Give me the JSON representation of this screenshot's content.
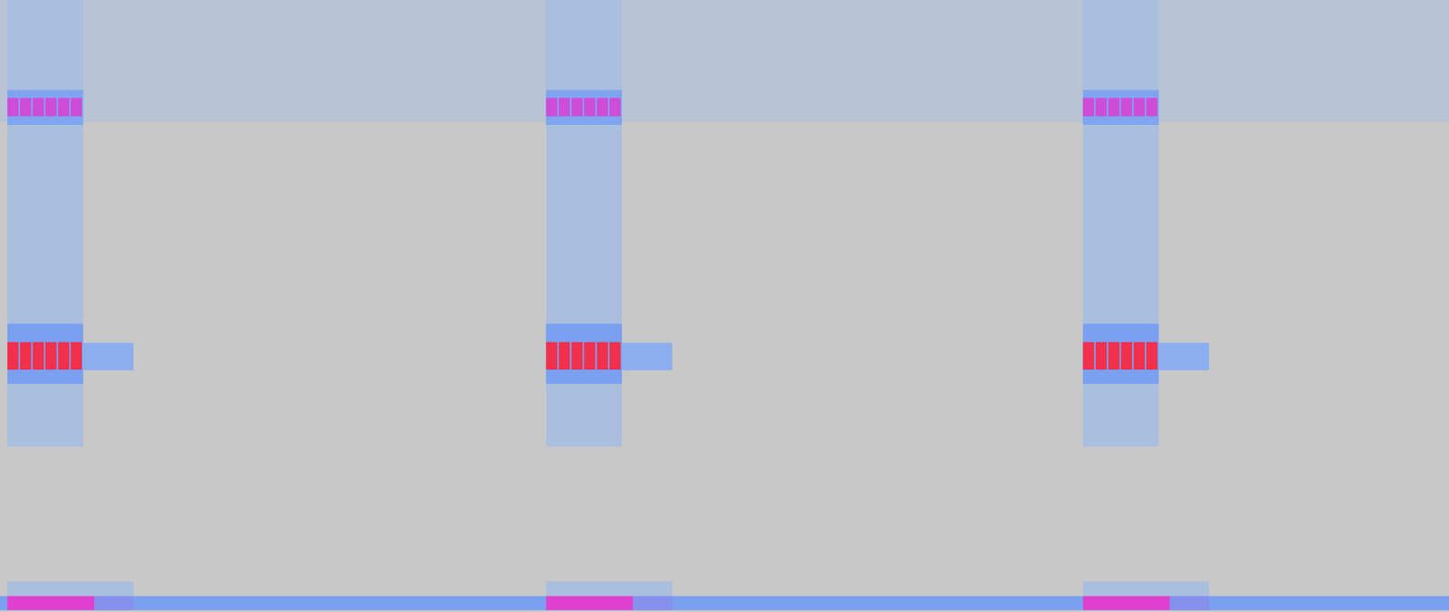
{
  "chart_data": {
    "type": "heatmap",
    "xlim": [
      0,
      100
    ],
    "ylim": [
      0,
      100
    ],
    "zlim": [
      0,
      100
    ],
    "tick_labels": false,
    "cells": [
      [
        0,
        100,
        80,
        100,
        8
      ],
      [
        0,
        100,
        0.3,
        2.6,
        50
      ],
      [
        0.51,
        5.74,
        27,
        100,
        15
      ],
      [
        0.51,
        5.74,
        37.3,
        47.1,
        50
      ],
      [
        0.51,
        1.28,
        39.6,
        44.1,
        100
      ],
      [
        1.38,
        2.15,
        39.6,
        44.1,
        100
      ],
      [
        2.26,
        3.03,
        39.6,
        44.1,
        100
      ],
      [
        3.13,
        3.9,
        39.6,
        44.1,
        100
      ],
      [
        4.01,
        4.78,
        39.6,
        44.1,
        100
      ],
      [
        4.88,
        5.65,
        39.6,
        44.1,
        100
      ],
      [
        5.74,
        9.21,
        39.5,
        44,
        35
      ],
      [
        0.51,
        5.74,
        79.6,
        85.3,
        45
      ],
      [
        0.51,
        1.28,
        81,
        84,
        80
      ],
      [
        1.38,
        2.15,
        81,
        84,
        80
      ],
      [
        2.26,
        3.03,
        81,
        84,
        80
      ],
      [
        3.13,
        3.9,
        81,
        84,
        80
      ],
      [
        4.01,
        4.78,
        81,
        84,
        80
      ],
      [
        4.88,
        5.65,
        81,
        84,
        80
      ],
      [
        0.51,
        9.21,
        2.6,
        5,
        15
      ],
      [
        0.51,
        6.51,
        0.3,
        2.6,
        85
      ],
      [
        6.51,
        9.21,
        0.3,
        2.6,
        55
      ],
      [
        37.69,
        42.92,
        27,
        100,
        15
      ],
      [
        37.69,
        42.92,
        37.3,
        47.1,
        50
      ],
      [
        37.69,
        38.46,
        39.6,
        44.1,
        100
      ],
      [
        38.56,
        39.33,
        39.6,
        44.1,
        100
      ],
      [
        39.44,
        40.21,
        39.6,
        44.1,
        100
      ],
      [
        40.31,
        41.08,
        39.6,
        44.1,
        100
      ],
      [
        41.19,
        41.96,
        39.6,
        44.1,
        100
      ],
      [
        42.06,
        42.83,
        39.6,
        44.1,
        100
      ],
      [
        42.92,
        46.39,
        39.5,
        44,
        35
      ],
      [
        37.69,
        42.92,
        79.6,
        85.3,
        45
      ],
      [
        37.69,
        38.46,
        81,
        84,
        80
      ],
      [
        38.56,
        39.33,
        81,
        84,
        80
      ],
      [
        39.44,
        40.21,
        81,
        84,
        80
      ],
      [
        40.31,
        41.08,
        81,
        84,
        80
      ],
      [
        41.19,
        41.96,
        81,
        84,
        80
      ],
      [
        42.06,
        42.83,
        81,
        84,
        80
      ],
      [
        37.69,
        46.39,
        2.6,
        5,
        15
      ],
      [
        37.69,
        43.69,
        0.3,
        2.6,
        85
      ],
      [
        43.69,
        46.39,
        0.3,
        2.6,
        55
      ],
      [
        74.74,
        79.97,
        27,
        100,
        15
      ],
      [
        74.74,
        79.97,
        37.3,
        47.1,
        50
      ],
      [
        74.74,
        75.51,
        39.6,
        44.1,
        100
      ],
      [
        75.61,
        76.38,
        39.6,
        44.1,
        100
      ],
      [
        76.49,
        77.26,
        39.6,
        44.1,
        100
      ],
      [
        77.36,
        78.13,
        39.6,
        44.1,
        100
      ],
      [
        78.24,
        79.01,
        39.6,
        44.1,
        100
      ],
      [
        79.11,
        79.88,
        39.6,
        44.1,
        100
      ],
      [
        79.97,
        83.44,
        39.5,
        44,
        35
      ],
      [
        74.74,
        79.97,
        79.6,
        85.3,
        45
      ],
      [
        74.74,
        75.51,
        81,
        84,
        80
      ],
      [
        75.61,
        76.38,
        81,
        84,
        80
      ],
      [
        76.49,
        77.26,
        81,
        84,
        80
      ],
      [
        77.36,
        78.13,
        81,
        84,
        80
      ],
      [
        78.24,
        79.01,
        81,
        84,
        80
      ],
      [
        79.11,
        79.88,
        81,
        84,
        80
      ],
      [
        74.74,
        83.44,
        2.6,
        5,
        15
      ],
      [
        74.74,
        80.74,
        0.3,
        2.6,
        85
      ],
      [
        80.74,
        83.44,
        0.3,
        2.6,
        55
      ]
    ]
  }
}
